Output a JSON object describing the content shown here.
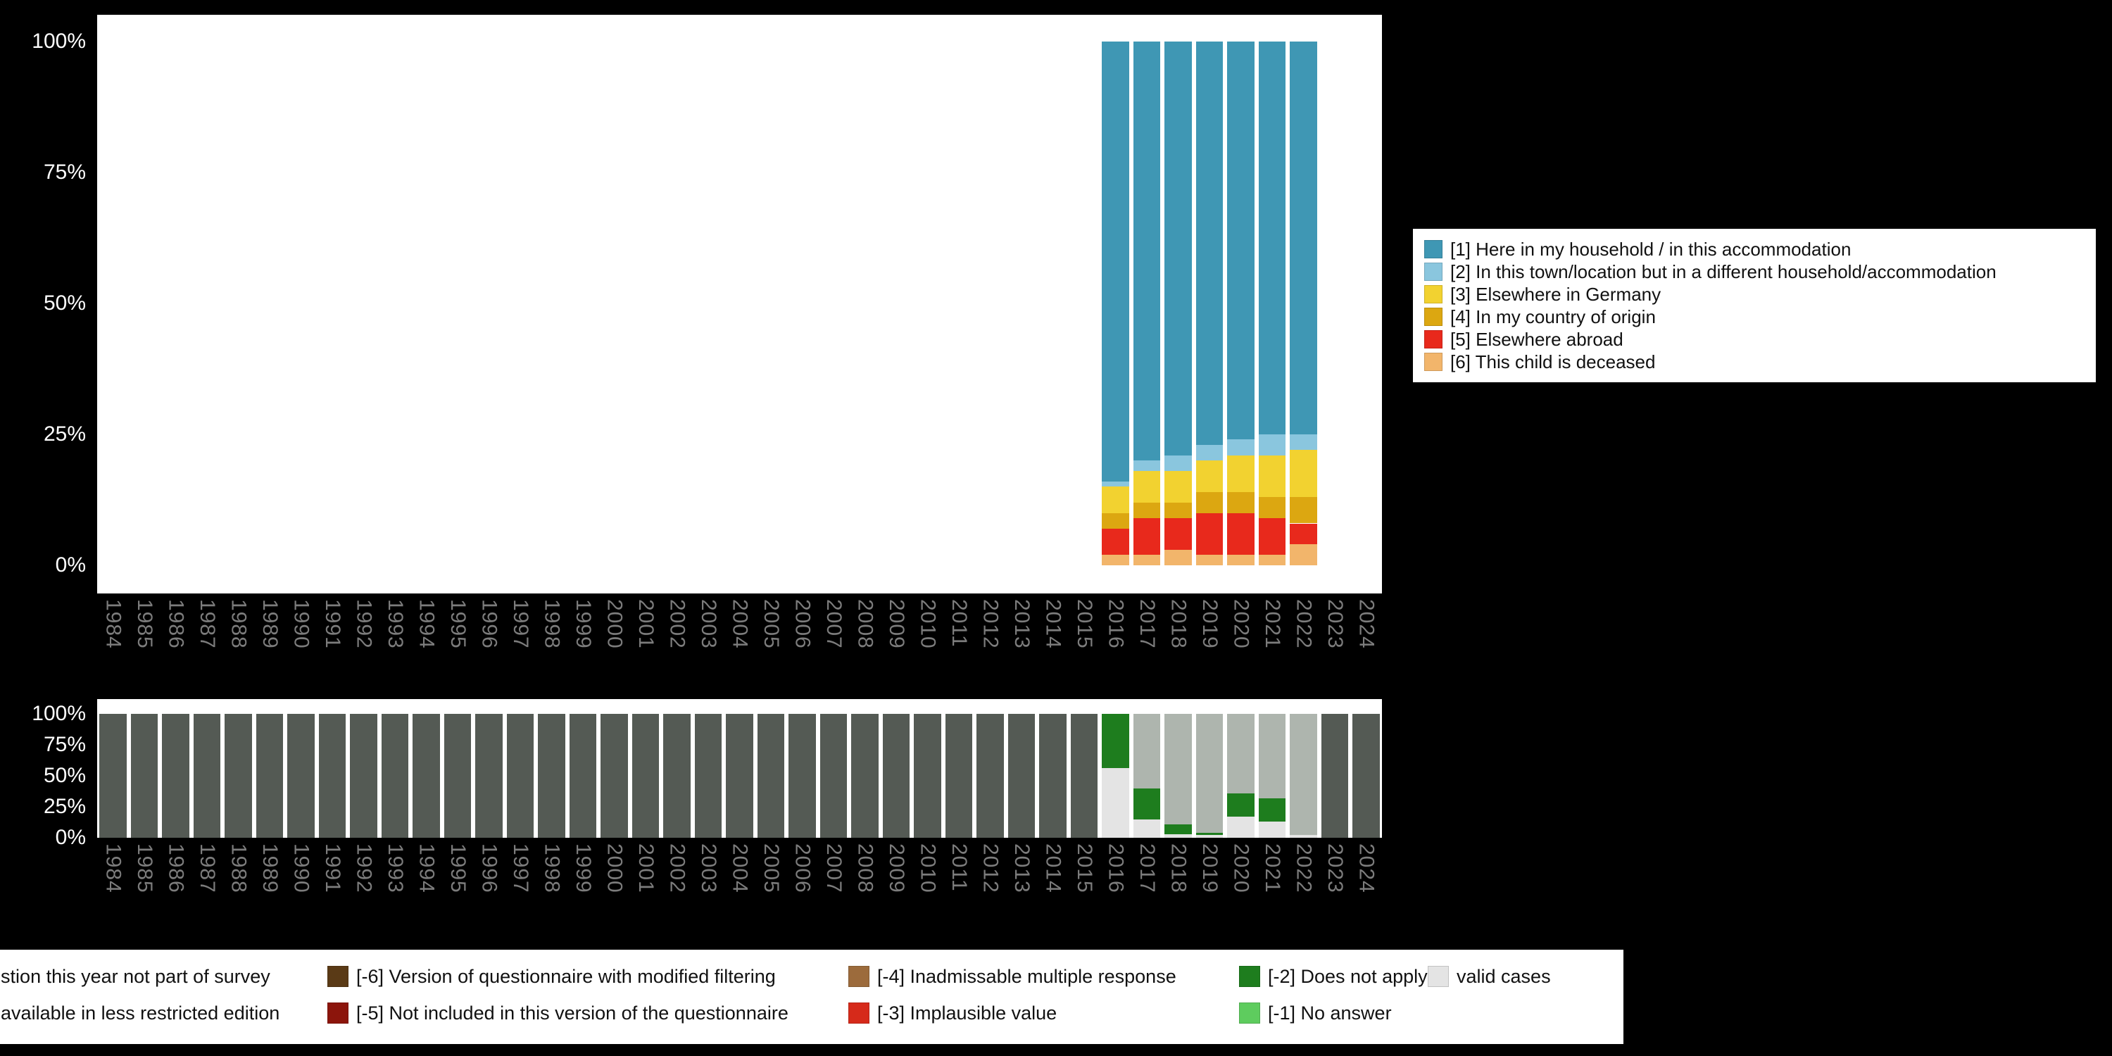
{
  "y_ticks": [
    "100%",
    "75%",
    "50%",
    "25%",
    "0%"
  ],
  "years": [
    "1984",
    "1985",
    "1986",
    "1987",
    "1988",
    "1989",
    "1990",
    "1991",
    "1992",
    "1993",
    "1994",
    "1995",
    "1996",
    "1997",
    "1998",
    "1999",
    "2000",
    "2001",
    "2002",
    "2003",
    "2004",
    "2005",
    "2006",
    "2007",
    "2008",
    "2009",
    "2010",
    "2011",
    "2012",
    "2013",
    "2014",
    "2015",
    "2016",
    "2017",
    "2018",
    "2019",
    "2020",
    "2021",
    "2022",
    "2023",
    "2024"
  ],
  "chart_data": [
    {
      "type": "bar",
      "name": "distribution-by-year",
      "title": "",
      "xlabel": "",
      "ylabel": "",
      "ylim": [
        0,
        100
      ],
      "grid": false,
      "legend_position": "right",
      "x_categories_ref": "years",
      "stack_order": [
        "6",
        "5",
        "4",
        "3",
        "2",
        "1"
      ],
      "legend_order": [
        "1",
        "2",
        "3",
        "4",
        "5",
        "6"
      ],
      "categories": {
        "1": {
          "label": "[1] Here in my household / in this accommodation",
          "color": "#3f97b4"
        },
        "2": {
          "label": "[2] In this town/location but in a different household/accommodation",
          "color": "#8ac6de"
        },
        "3": {
          "label": "[3] Elsewhere in Germany",
          "color": "#f2d230"
        },
        "4": {
          "label": "[4] In my country of origin",
          "color": "#dca711"
        },
        "5": {
          "label": "[5] Elsewhere abroad",
          "color": "#e8291c"
        },
        "6": {
          "label": "[6] This child is deceased",
          "color": "#f2b56b"
        }
      },
      "values_by_year": {
        "2016": {
          "1": 84,
          "2": 1,
          "3": 5,
          "4": 3,
          "5": 5,
          "6": 2
        },
        "2017": {
          "1": 80,
          "2": 2,
          "3": 6,
          "4": 3,
          "5": 7,
          "6": 2
        },
        "2018": {
          "1": 79,
          "2": 3,
          "3": 6,
          "4": 3,
          "5": 6,
          "6": 3
        },
        "2019": {
          "1": 77,
          "2": 3,
          "3": 6,
          "4": 4,
          "5": 8,
          "6": 2
        },
        "2020": {
          "1": 76,
          "2": 3,
          "3": 7,
          "4": 4,
          "5": 8,
          "6": 2
        },
        "2021": {
          "1": 75,
          "2": 4,
          "3": 8,
          "4": 4,
          "5": 7,
          "6": 2
        },
        "2022": {
          "1": 75,
          "2": 3,
          "3": 9,
          "4": 5,
          "5": 4,
          "6": 4
        }
      }
    },
    {
      "type": "bar",
      "name": "missing-values-by-year",
      "title": "",
      "xlabel": "",
      "ylabel": "",
      "ylim": [
        0,
        100
      ],
      "grid": false,
      "legend_position": "bottom",
      "x_categories_ref": "years",
      "stack_order": [
        "valid",
        "-1",
        "-2",
        "-3",
        "-4",
        "-5",
        "-6",
        "remote",
        "not_part"
      ],
      "categories": {
        "not_part": {
          "label": "question this year not part of survey",
          "color": "#545a54"
        },
        "remote": {
          "label": "not available in less restricted edition",
          "color": "#aeb5ae"
        },
        "-6": {
          "label": "[-6] Version of questionnaire with modified filtering",
          "color": "#5a3a16"
        },
        "-5": {
          "label": "[-5] Not included in this version of the questionnaire",
          "color": "#8c150c"
        },
        "-4": {
          "label": "[-4] Inadmissable multiple response",
          "color": "#9c6b3c"
        },
        "-3": {
          "label": "[-3] Implausible value",
          "color": "#d62a1a"
        },
        "-2": {
          "label": "[-2] Does not apply",
          "color": "#1e7d1e"
        },
        "-1": {
          "label": "[-1] No answer",
          "color": "#5ecc5e"
        },
        "valid": {
          "label": "valid cases",
          "color": "#e4e4e4"
        }
      },
      "default_year_value": {
        "not_part": 100
      },
      "values_by_year": {
        "2016": {
          "valid": 56,
          "-2": 44
        },
        "2017": {
          "valid": 15,
          "-2": 25,
          "remote": 60
        },
        "2018": {
          "valid": 3,
          "-2": 8,
          "remote": 89
        },
        "2019": {
          "valid": 2,
          "-2": 2,
          "remote": 96
        },
        "2020": {
          "valid": 17,
          "-2": 19,
          "remote": 64
        },
        "2021": {
          "valid": 13,
          "-2": 19,
          "remote": 68
        },
        "2022": {
          "valid": 2,
          "remote": 98
        }
      }
    }
  ],
  "legend_bottom": {
    "columns": [
      [
        "not_part",
        "remote"
      ],
      [
        "-6",
        "-5"
      ],
      [
        "-4",
        "-3"
      ],
      [
        "-2",
        "-1"
      ],
      [
        "valid"
      ]
    ]
  }
}
